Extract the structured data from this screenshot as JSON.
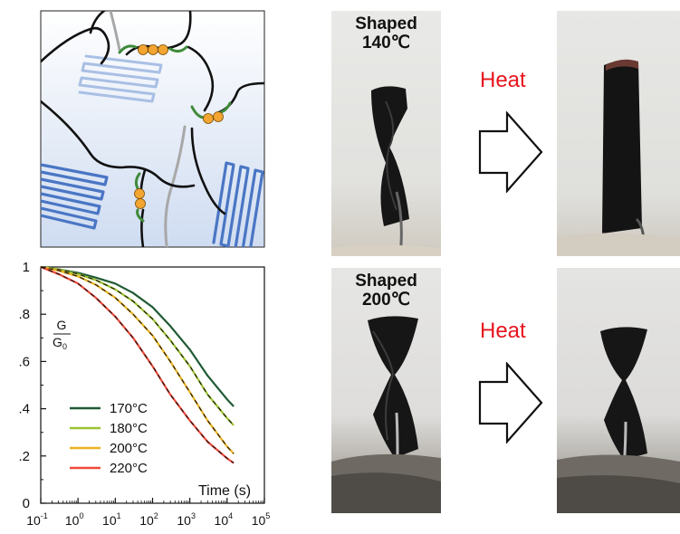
{
  "chart_data": {
    "type": "line",
    "xscale": "log",
    "xlim": [
      0.1,
      100000
    ],
    "ylim": [
      0,
      1
    ],
    "xlabel": "Time (s)",
    "ylabel": "G/G0",
    "ylabel_num": "G",
    "ylabel_den": "G",
    "ylabel_den_sub": "0",
    "x_ticks": [
      {
        "value": 0.1,
        "base": "10",
        "exp": "-1"
      },
      {
        "value": 1,
        "base": "10",
        "exp": "0"
      },
      {
        "value": 10,
        "base": "10",
        "exp": "1"
      },
      {
        "value": 100,
        "base": "10",
        "exp": "2"
      },
      {
        "value": 1000,
        "base": "10",
        "exp": "3"
      },
      {
        "value": 10000,
        "base": "10",
        "exp": "4"
      },
      {
        "value": 100000,
        "base": "10",
        "exp": "5"
      }
    ],
    "y_ticks": [
      {
        "value": 0,
        "label": "0"
      },
      {
        "value": 0.2,
        "label": ".2"
      },
      {
        "value": 0.4,
        "label": ".4"
      },
      {
        "value": 0.6,
        "label": ".6"
      },
      {
        "value": 0.8,
        "label": ".8"
      },
      {
        "value": 1,
        "label": "1"
      }
    ],
    "x": [
      0.1,
      0.3,
      1,
      3,
      10,
      30,
      100,
      300,
      1000,
      3000,
      10000,
      15000
    ],
    "series": [
      {
        "name": "170°C",
        "color": "#1f5a34",
        "values": [
          1.0,
          0.99,
          0.975,
          0.955,
          0.93,
          0.89,
          0.83,
          0.75,
          0.65,
          0.54,
          0.44,
          0.41
        ]
      },
      {
        "name": "180°C",
        "color": "#9cc231",
        "values": [
          1.0,
          0.99,
          0.97,
          0.945,
          0.905,
          0.855,
          0.78,
          0.69,
          0.58,
          0.46,
          0.36,
          0.33
        ]
      },
      {
        "name": "200°C",
        "color": "#ebb321",
        "values": [
          1.0,
          0.985,
          0.96,
          0.925,
          0.87,
          0.8,
          0.71,
          0.6,
          0.47,
          0.35,
          0.24,
          0.21
        ]
      },
      {
        "name": "220°C",
        "color": "#ef4a3a",
        "values": [
          1.0,
          0.97,
          0.93,
          0.87,
          0.79,
          0.7,
          0.58,
          0.46,
          0.35,
          0.26,
          0.19,
          0.17
        ]
      }
    ]
  },
  "photos": {
    "top_caption_line1": "Shaped",
    "top_caption_line2": "140℃",
    "bottom_caption_line1": "Shaped",
    "bottom_caption_line2": "200℃",
    "heat_label_top": "Heat",
    "heat_label_bottom": "Heat"
  },
  "colors": {
    "crystal_lamella": "#4a76c4",
    "chain": "#111111",
    "linker": "#3f8a3a",
    "bead": "#f2a531",
    "gray_chain": "#a8a8a8",
    "heat_text": "#e8141e"
  }
}
